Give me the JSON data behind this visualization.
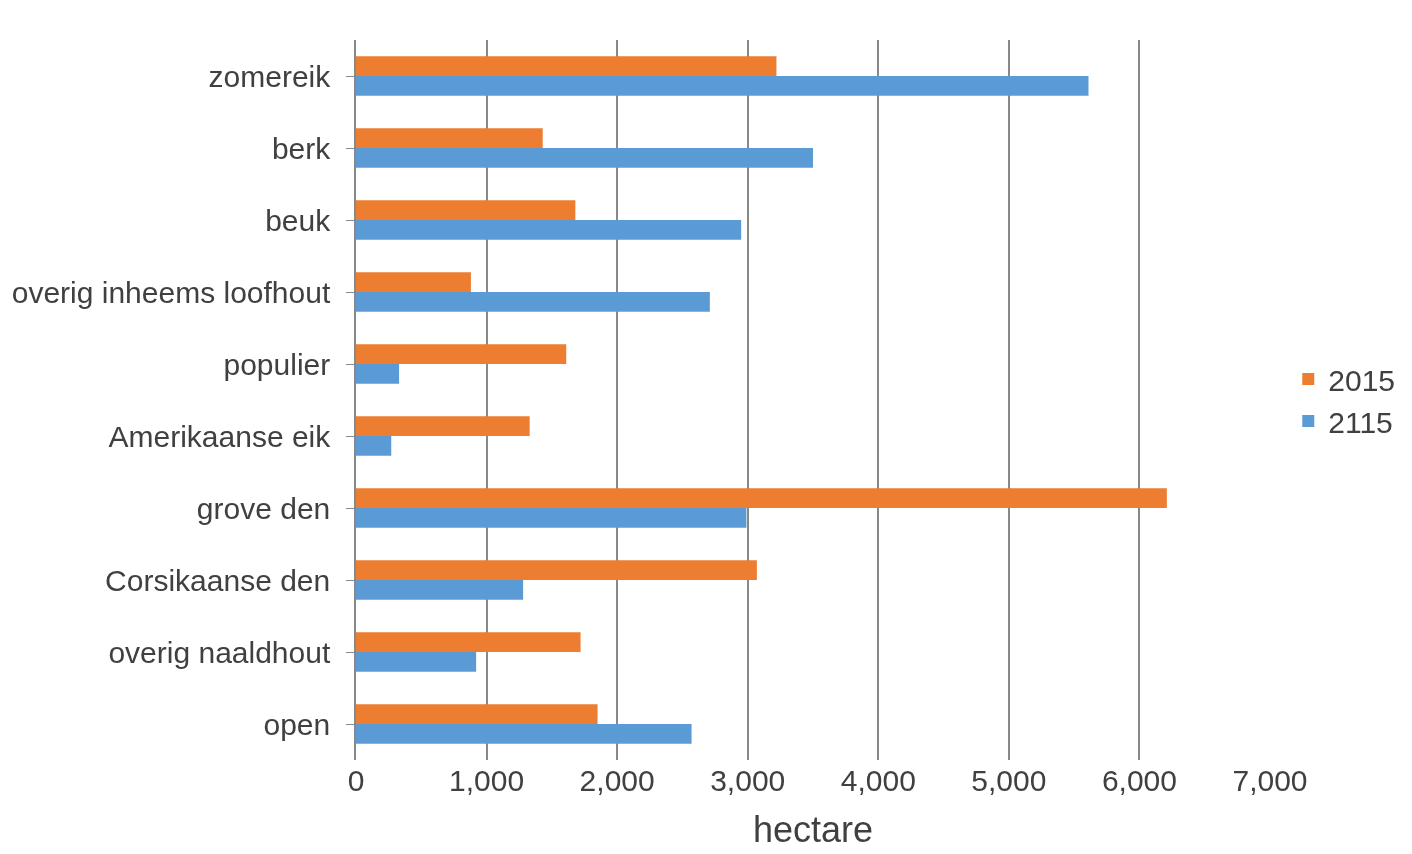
{
  "chart_data": {
    "type": "bar",
    "orientation": "horizontal",
    "xlabel": "hectare",
    "categories": [
      "zomereik",
      "berk",
      "beuk",
      "overig inheems loofhout",
      "populier",
      "Amerikaanse eik",
      "grove den",
      "Corsikaanse den",
      "overig naaldhout",
      "open"
    ],
    "series": [
      {
        "name": "2015",
        "color": "#ed7d31",
        "values": [
          3220,
          1430,
          1680,
          880,
          1610,
          1330,
          6210,
          3070,
          1720,
          1850
        ]
      },
      {
        "name": "2115",
        "color": "#5b9bd5",
        "values": [
          5610,
          3500,
          2950,
          2710,
          330,
          270,
          2990,
          1280,
          920,
          2570
        ]
      }
    ],
    "xlim": [
      0,
      7000
    ],
    "xticks": [
      0,
      {
        "value": 1000,
        "label": "1,000"
      },
      {
        "value": 2000,
        "label": "2,000"
      },
      {
        "value": 3000,
        "label": "3,000"
      },
      {
        "value": 4000,
        "label": "4,000"
      },
      {
        "value": 5000,
        "label": "5,000"
      },
      {
        "value": 6000,
        "label": "6,000"
      },
      {
        "value": 7000,
        "label": "7,000"
      }
    ],
    "grid": "x",
    "legend": "right"
  }
}
